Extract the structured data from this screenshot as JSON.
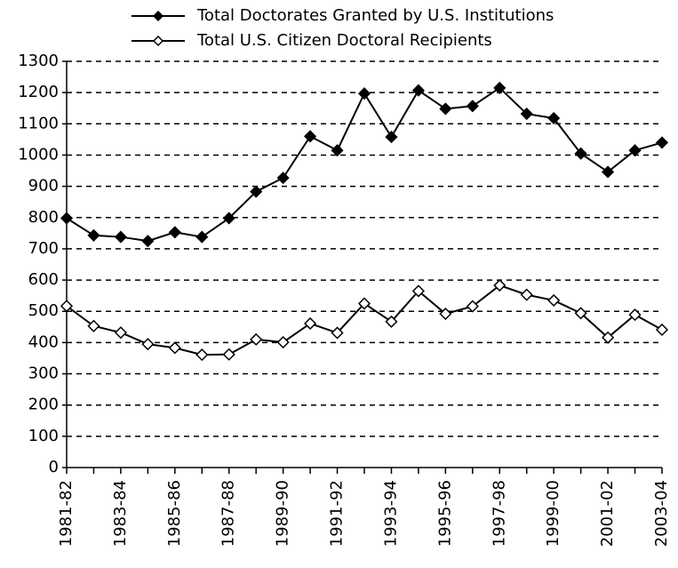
{
  "chart_data": {
    "type": "line",
    "categories": [
      "1981-82",
      null,
      "1983-84",
      null,
      "1985-86",
      null,
      "1987-88",
      null,
      "1989-90",
      null,
      "1991-92",
      null,
      "1993-94",
      null,
      "1995-96",
      null,
      "1997-98",
      null,
      "1999-00",
      null,
      "2001-02",
      null,
      "2003-04"
    ],
    "series": [
      {
        "name": "Total Doctorates Granted by U.S. Institutions",
        "color": "#000000",
        "marker_fill": "#000000",
        "values": [
          798,
          743,
          738,
          725,
          753,
          738,
          798,
          883,
          927,
          1060,
          1015,
          1197,
          1058,
          1207,
          1148,
          1157,
          1215,
          1132,
          1118,
          1005,
          946,
          1015,
          1040
        ]
      },
      {
        "name": "Total U.S. Citizen Doctoral Recipients",
        "color": "#000000",
        "marker_fill": "#ffffff",
        "values": [
          517,
          453,
          432,
          395,
          383,
          361,
          362,
          410,
          401,
          461,
          431,
          525,
          467,
          565,
          492,
          516,
          583,
          553,
          535,
          494,
          416,
          489,
          441
        ]
      }
    ],
    "ylim": [
      0,
      1300
    ],
    "yticks": [
      0,
      100,
      200,
      300,
      400,
      500,
      600,
      700,
      800,
      900,
      1000,
      1100,
      1200,
      1300
    ],
    "grid": true
  }
}
